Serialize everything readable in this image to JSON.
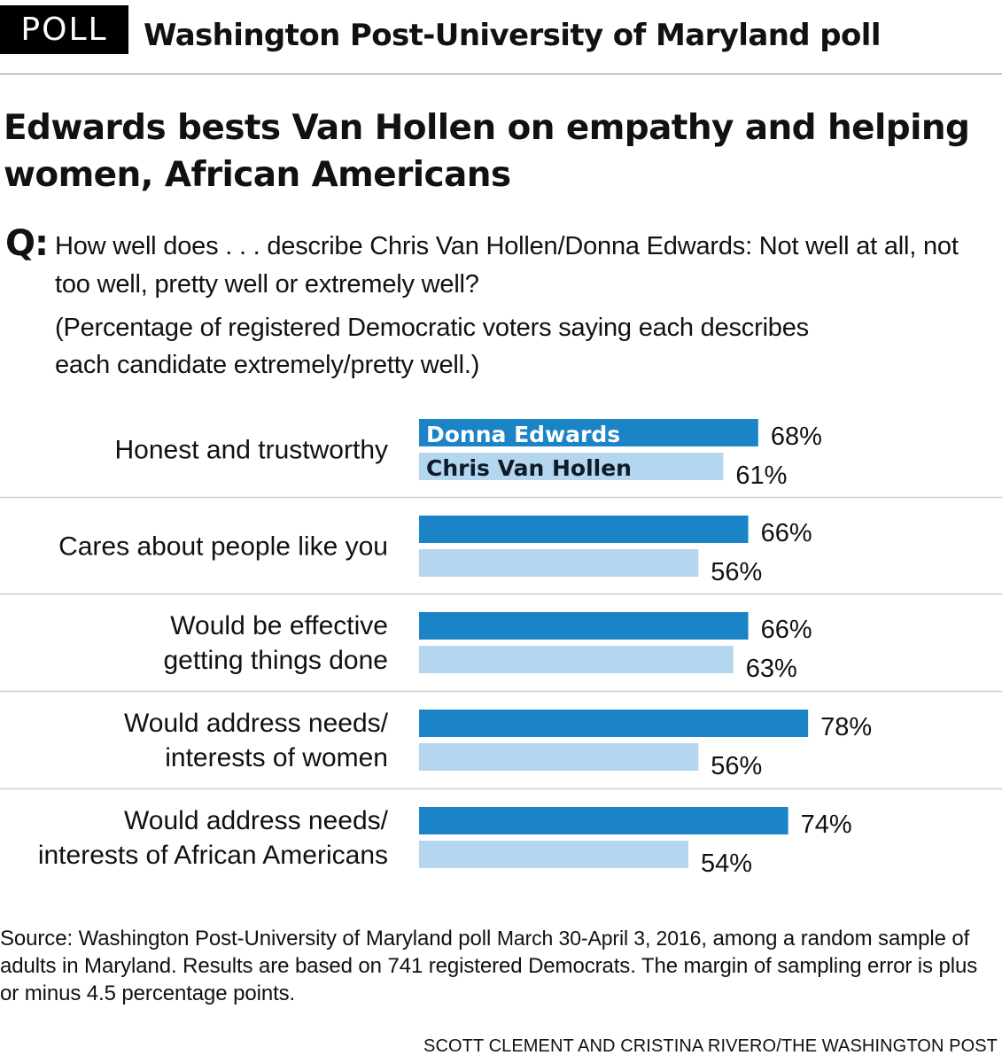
{
  "header": {
    "badge": "POLL",
    "title": "Washington Post-University of Maryland poll"
  },
  "headline": "Edwards bests Van Hollen on empathy and helping women, African Americans",
  "question": {
    "prefix": "Q:",
    "text": "How well does  . . . describe Chris Van Hollen/Donna Edwards: Not well at all, not too well, pretty well or extremely well?"
  },
  "note": "(Percentage of registered Democratic voters saying each describes each candidate extremely/pretty well.)",
  "chart_data": {
    "type": "bar",
    "orientation": "horizontal",
    "categories": [
      [
        "Honest and trustworthy"
      ],
      [
        "Cares about people like you"
      ],
      [
        "Would be effective",
        "getting things done"
      ],
      [
        "Would address needs/",
        "interests of women"
      ],
      [
        "Would address needs/",
        "interests of African Americans"
      ]
    ],
    "series": [
      {
        "name": "Donna Edwards",
        "color": "#1a84c7",
        "values": [
          68,
          66,
          66,
          78,
          74
        ]
      },
      {
        "name": "Chris Van Hollen",
        "color": "#b5d6ef",
        "values": [
          61,
          56,
          63,
          56,
          54
        ]
      }
    ],
    "value_suffix": "%",
    "legend": "inside first bars",
    "xlim": [
      0,
      100
    ],
    "grid": false,
    "separator_color": "#cccccc"
  },
  "source": {
    "text": "Source: Washington Post-University of Maryland poll ",
    "dates": "March 30-April 3, 2016",
    "rest": ", among a random sample of adults in Maryland. Results are based on 741 registered Democrats. The margin of sampling error is plus or minus 4.5 percentage points."
  },
  "credit": "SCOTT CLEMENT AND CRISTINA RIVERO/THE WASHINGTON POST"
}
